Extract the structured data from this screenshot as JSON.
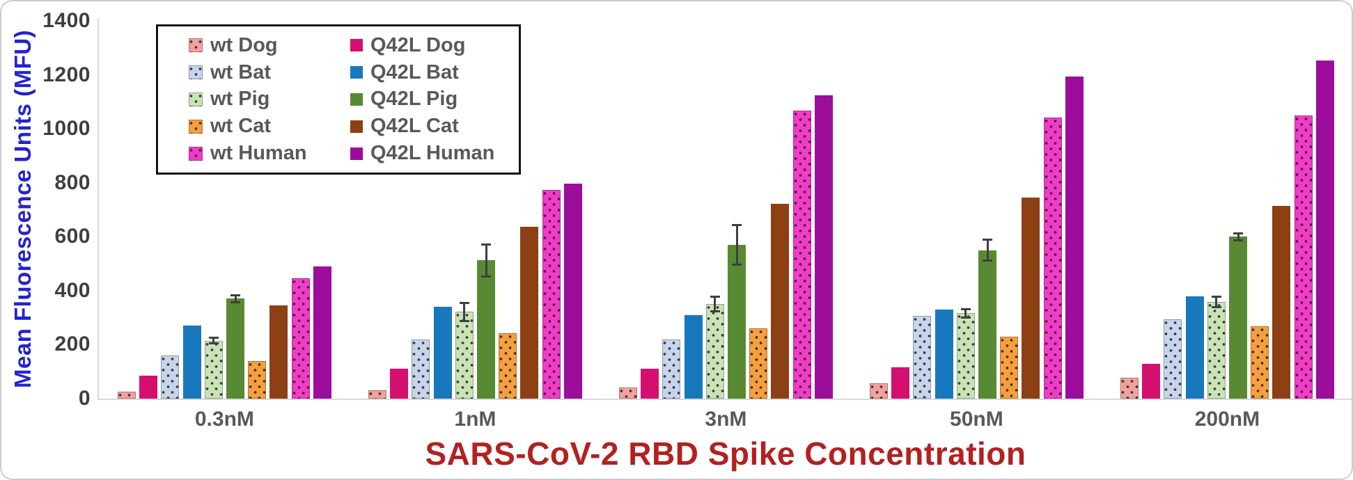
{
  "chart_data": {
    "type": "bar",
    "title": "",
    "xlabel": "SARS-CoV-2 RBD Spike Concentration",
    "ylabel": "Mean Fluorescence Units (MFU)",
    "categories": [
      "0.3nM",
      "1nM",
      "3nM",
      "50nM",
      "200nM"
    ],
    "y_ticks": [
      0,
      200,
      400,
      600,
      800,
      1000,
      1200,
      1400
    ],
    "ylim": [
      0,
      1400
    ],
    "grid": false,
    "legend_position": "top-left",
    "legend_columns": [
      "wt",
      "Q42L"
    ],
    "series": [
      {
        "name": "wt Dog",
        "color": "#F2A29E",
        "pattern": "dotted",
        "values": [
          25,
          30,
          40,
          56,
          78
        ],
        "errors": [
          0,
          0,
          0,
          0,
          0
        ]
      },
      {
        "name": "Q42L Dog",
        "color": "#D40F6F",
        "pattern": "solid",
        "values": [
          85,
          112,
          112,
          117,
          128
        ],
        "errors": [
          0,
          0,
          0,
          0,
          0
        ]
      },
      {
        "name": "wt Bat",
        "color": "#C7D5EC",
        "pattern": "dotted",
        "values": [
          160,
          218,
          220,
          307,
          295
        ],
        "errors": [
          0,
          0,
          0,
          0,
          0
        ]
      },
      {
        "name": "Q42L Bat",
        "color": "#1878BE",
        "pattern": "solid",
        "values": [
          270,
          340,
          310,
          330,
          380
        ],
        "errors": [
          0,
          0,
          0,
          0,
          0
        ]
      },
      {
        "name": "wt Pig",
        "color": "#C9E3B6",
        "pattern": "dotted",
        "values": [
          215,
          322,
          350,
          316,
          358
        ],
        "errors": [
          12,
          35,
          28,
          16,
          20
        ]
      },
      {
        "name": "Q42L Pig",
        "color": "#588A33",
        "pattern": "solid",
        "values": [
          370,
          512,
          570,
          550,
          600
        ],
        "errors": [
          15,
          60,
          74,
          40,
          14
        ]
      },
      {
        "name": "wt Cat",
        "color": "#F69F40",
        "pattern": "dotted",
        "values": [
          140,
          242,
          260,
          230,
          268
        ],
        "errors": [
          0,
          0,
          0,
          0,
          0
        ]
      },
      {
        "name": "Q42L Cat",
        "color": "#8C4013",
        "pattern": "solid",
        "values": [
          345,
          638,
          722,
          746,
          714
        ],
        "errors": [
          0,
          0,
          0,
          0,
          0
        ]
      },
      {
        "name": "wt Human",
        "color": "#F23CC8",
        "pattern": "dotted",
        "values": [
          445,
          774,
          1068,
          1042,
          1050
        ],
        "errors": [
          0,
          0,
          0,
          0,
          0
        ]
      },
      {
        "name": "Q42L Human",
        "color": "#9C0D9C",
        "pattern": "solid",
        "values": [
          490,
          796,
          1124,
          1194,
          1252
        ],
        "errors": [
          0,
          0,
          0,
          0,
          0
        ]
      }
    ]
  },
  "colors": {
    "x_title": "#B42020",
    "y_title": "#2323CE",
    "tick_labels": "#3F3F3F",
    "category_labels": "#595959",
    "legend_text": "#595959",
    "legend_border": "#141414",
    "axis_line": "#D9D9D9",
    "error_bar": "#3F3F3F",
    "background": "#FFFFFF"
  }
}
